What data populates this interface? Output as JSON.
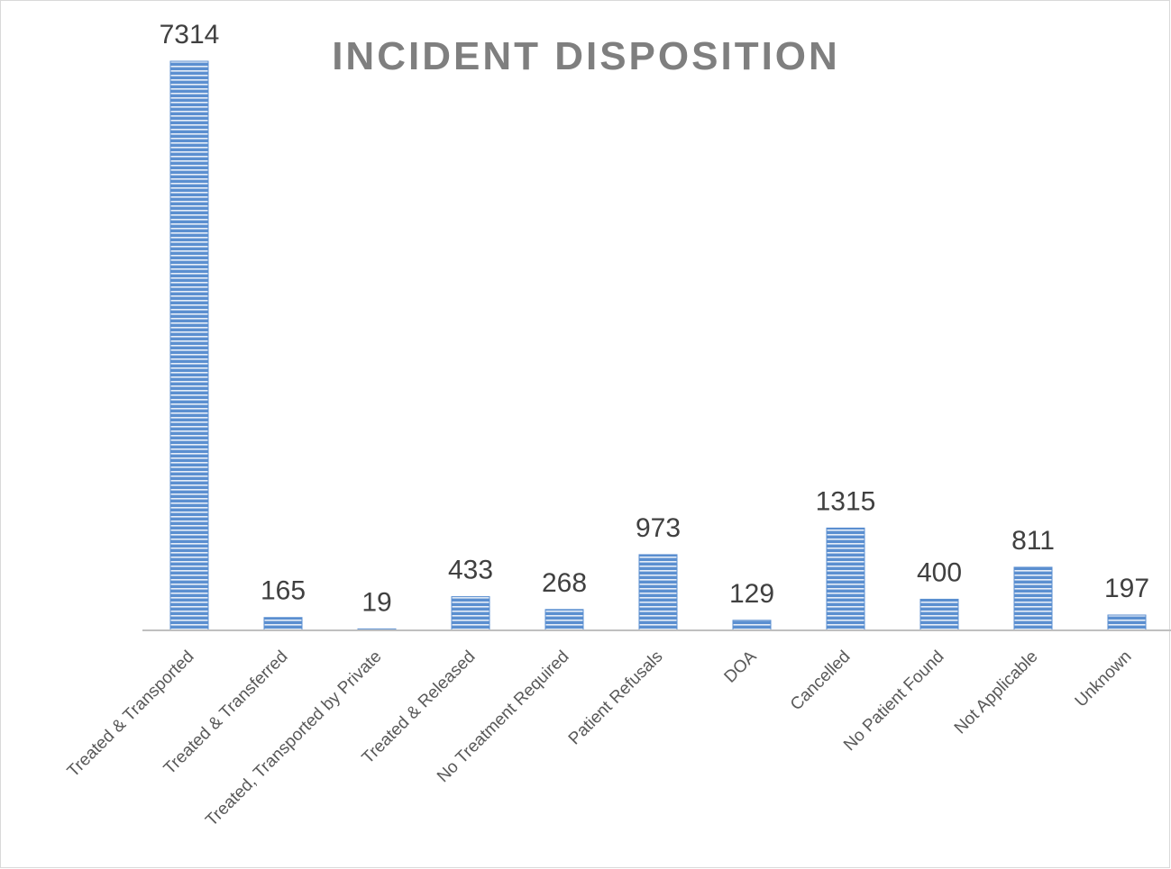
{
  "chart_data": {
    "type": "bar",
    "title": "INCIDENT DISPOSITION",
    "categories": [
      "Treated & Transported",
      "Treated & Transferred",
      "Treated, Transported by Private",
      "Treated & Released",
      "No Treatment Required",
      "Patient Refusals",
      "DOA",
      "Cancelled",
      "No Patient Found",
      "Not Applicable",
      "Unknown"
    ],
    "values": [
      7314,
      165,
      19,
      433,
      268,
      973,
      129,
      1315,
      400,
      811,
      197
    ],
    "color": "#5b8fd0"
  }
}
